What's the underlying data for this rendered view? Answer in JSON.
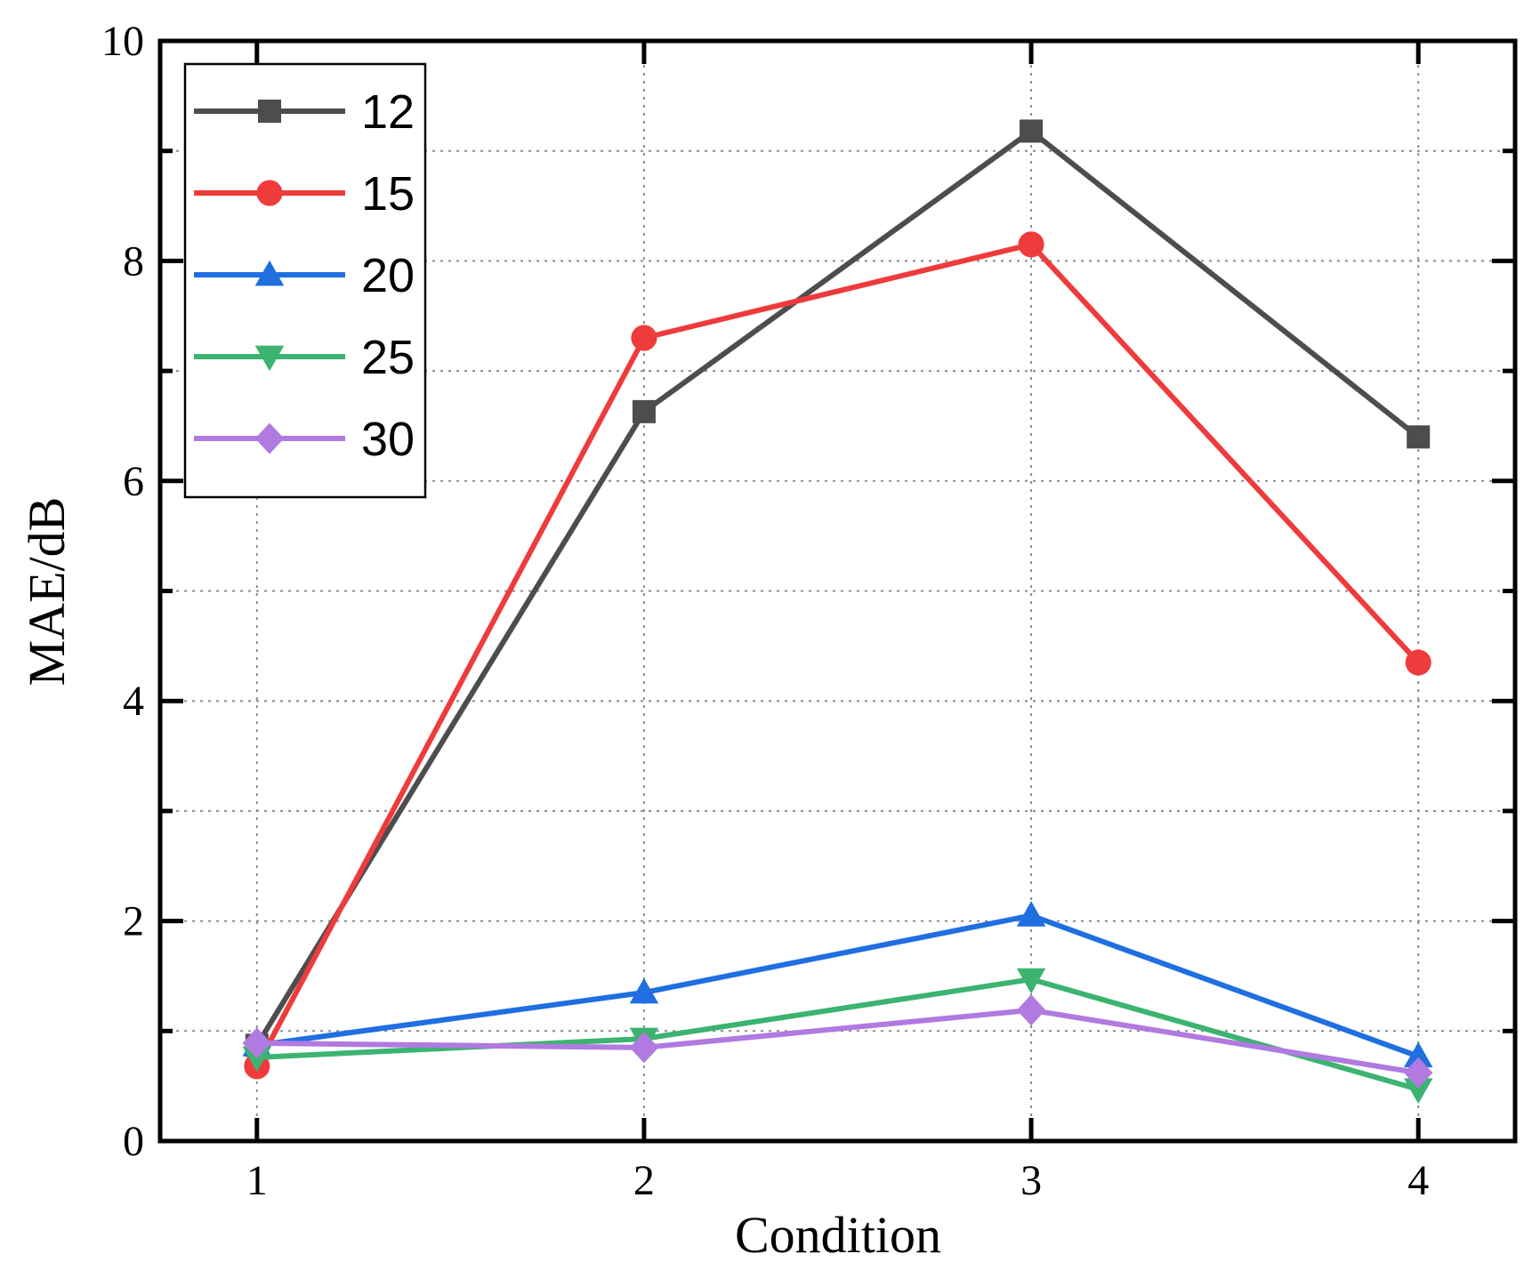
{
  "chart_data": {
    "type": "line",
    "title": "",
    "xlabel": "Condition",
    "ylabel": "MAE/dB",
    "x": [
      1,
      2,
      3,
      4
    ],
    "xticks": [
      "1",
      "2",
      "3",
      "4"
    ],
    "xlim": [
      0.75,
      4.25
    ],
    "ylim": [
      0,
      10
    ],
    "yticks": [
      "0",
      "2",
      "4",
      "6",
      "8",
      "10"
    ],
    "grid": true,
    "legend_position": "top-left",
    "series": [
      {
        "name": "12",
        "color": "#4d4d4d",
        "marker": "square",
        "values": [
          0.87,
          6.63,
          9.18,
          6.4
        ]
      },
      {
        "name": "15",
        "color": "#ef3b3b",
        "marker": "circle",
        "values": [
          0.68,
          7.3,
          8.15,
          4.35
        ]
      },
      {
        "name": "20",
        "color": "#1f6fe0",
        "marker": "triangle-up",
        "values": [
          0.87,
          1.35,
          2.05,
          0.77
        ]
      },
      {
        "name": "25",
        "color": "#3cb371",
        "marker": "triangle-down",
        "values": [
          0.76,
          0.93,
          1.47,
          0.47
        ]
      },
      {
        "name": "30",
        "color": "#b07ae0",
        "marker": "diamond",
        "values": [
          0.89,
          0.85,
          1.19,
          0.62
        ]
      }
    ]
  }
}
